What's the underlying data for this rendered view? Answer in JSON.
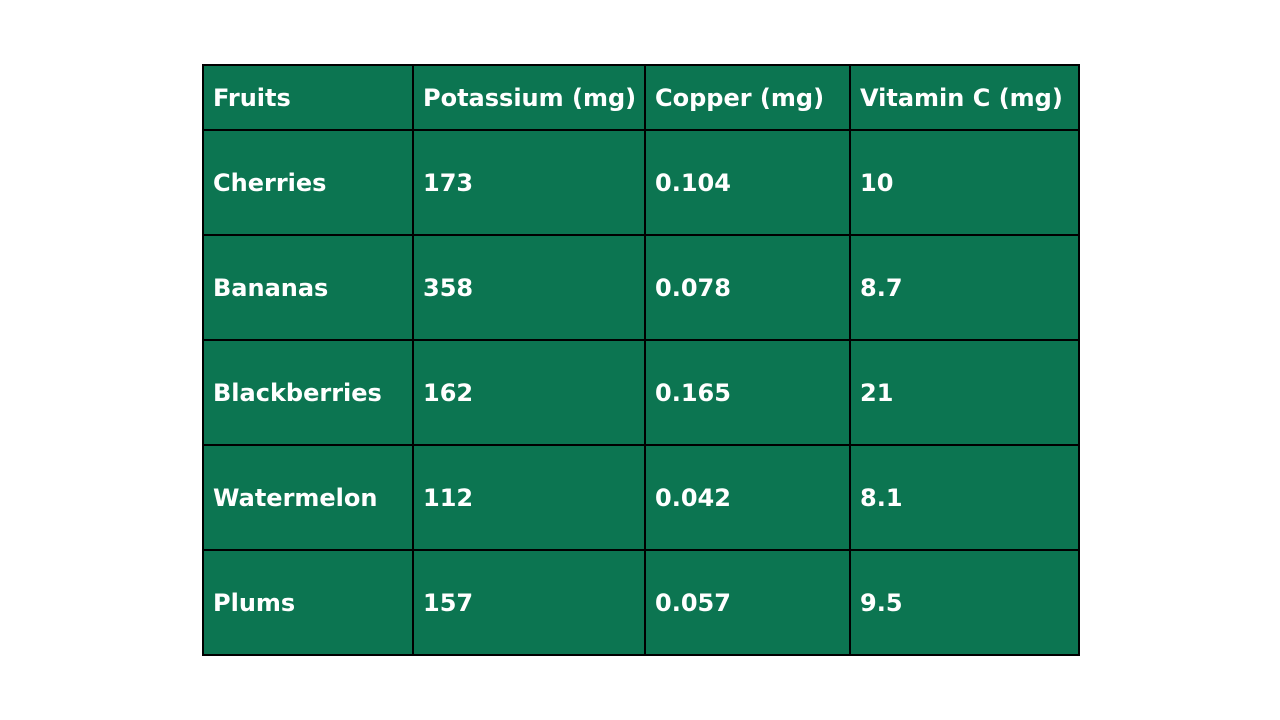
{
  "colors": {
    "cell_background": "#0c7551",
    "border": "#000000",
    "text": "#ffffff",
    "page_background": "#ffffff"
  },
  "table": {
    "headers": [
      "Fruits",
      "Potassium (mg)",
      "Copper (mg)",
      "Vitamin C (mg)"
    ],
    "rows": [
      [
        "Cherries",
        "173",
        "0.104",
        "10"
      ],
      [
        "Bananas",
        "358",
        "0.078",
        "8.7"
      ],
      [
        "Blackberries",
        "162",
        "0.165",
        "21"
      ],
      [
        "Watermelon",
        "112",
        "0.042",
        "8.1"
      ],
      [
        "Plums",
        "157",
        "0.057",
        "9.5"
      ]
    ]
  }
}
